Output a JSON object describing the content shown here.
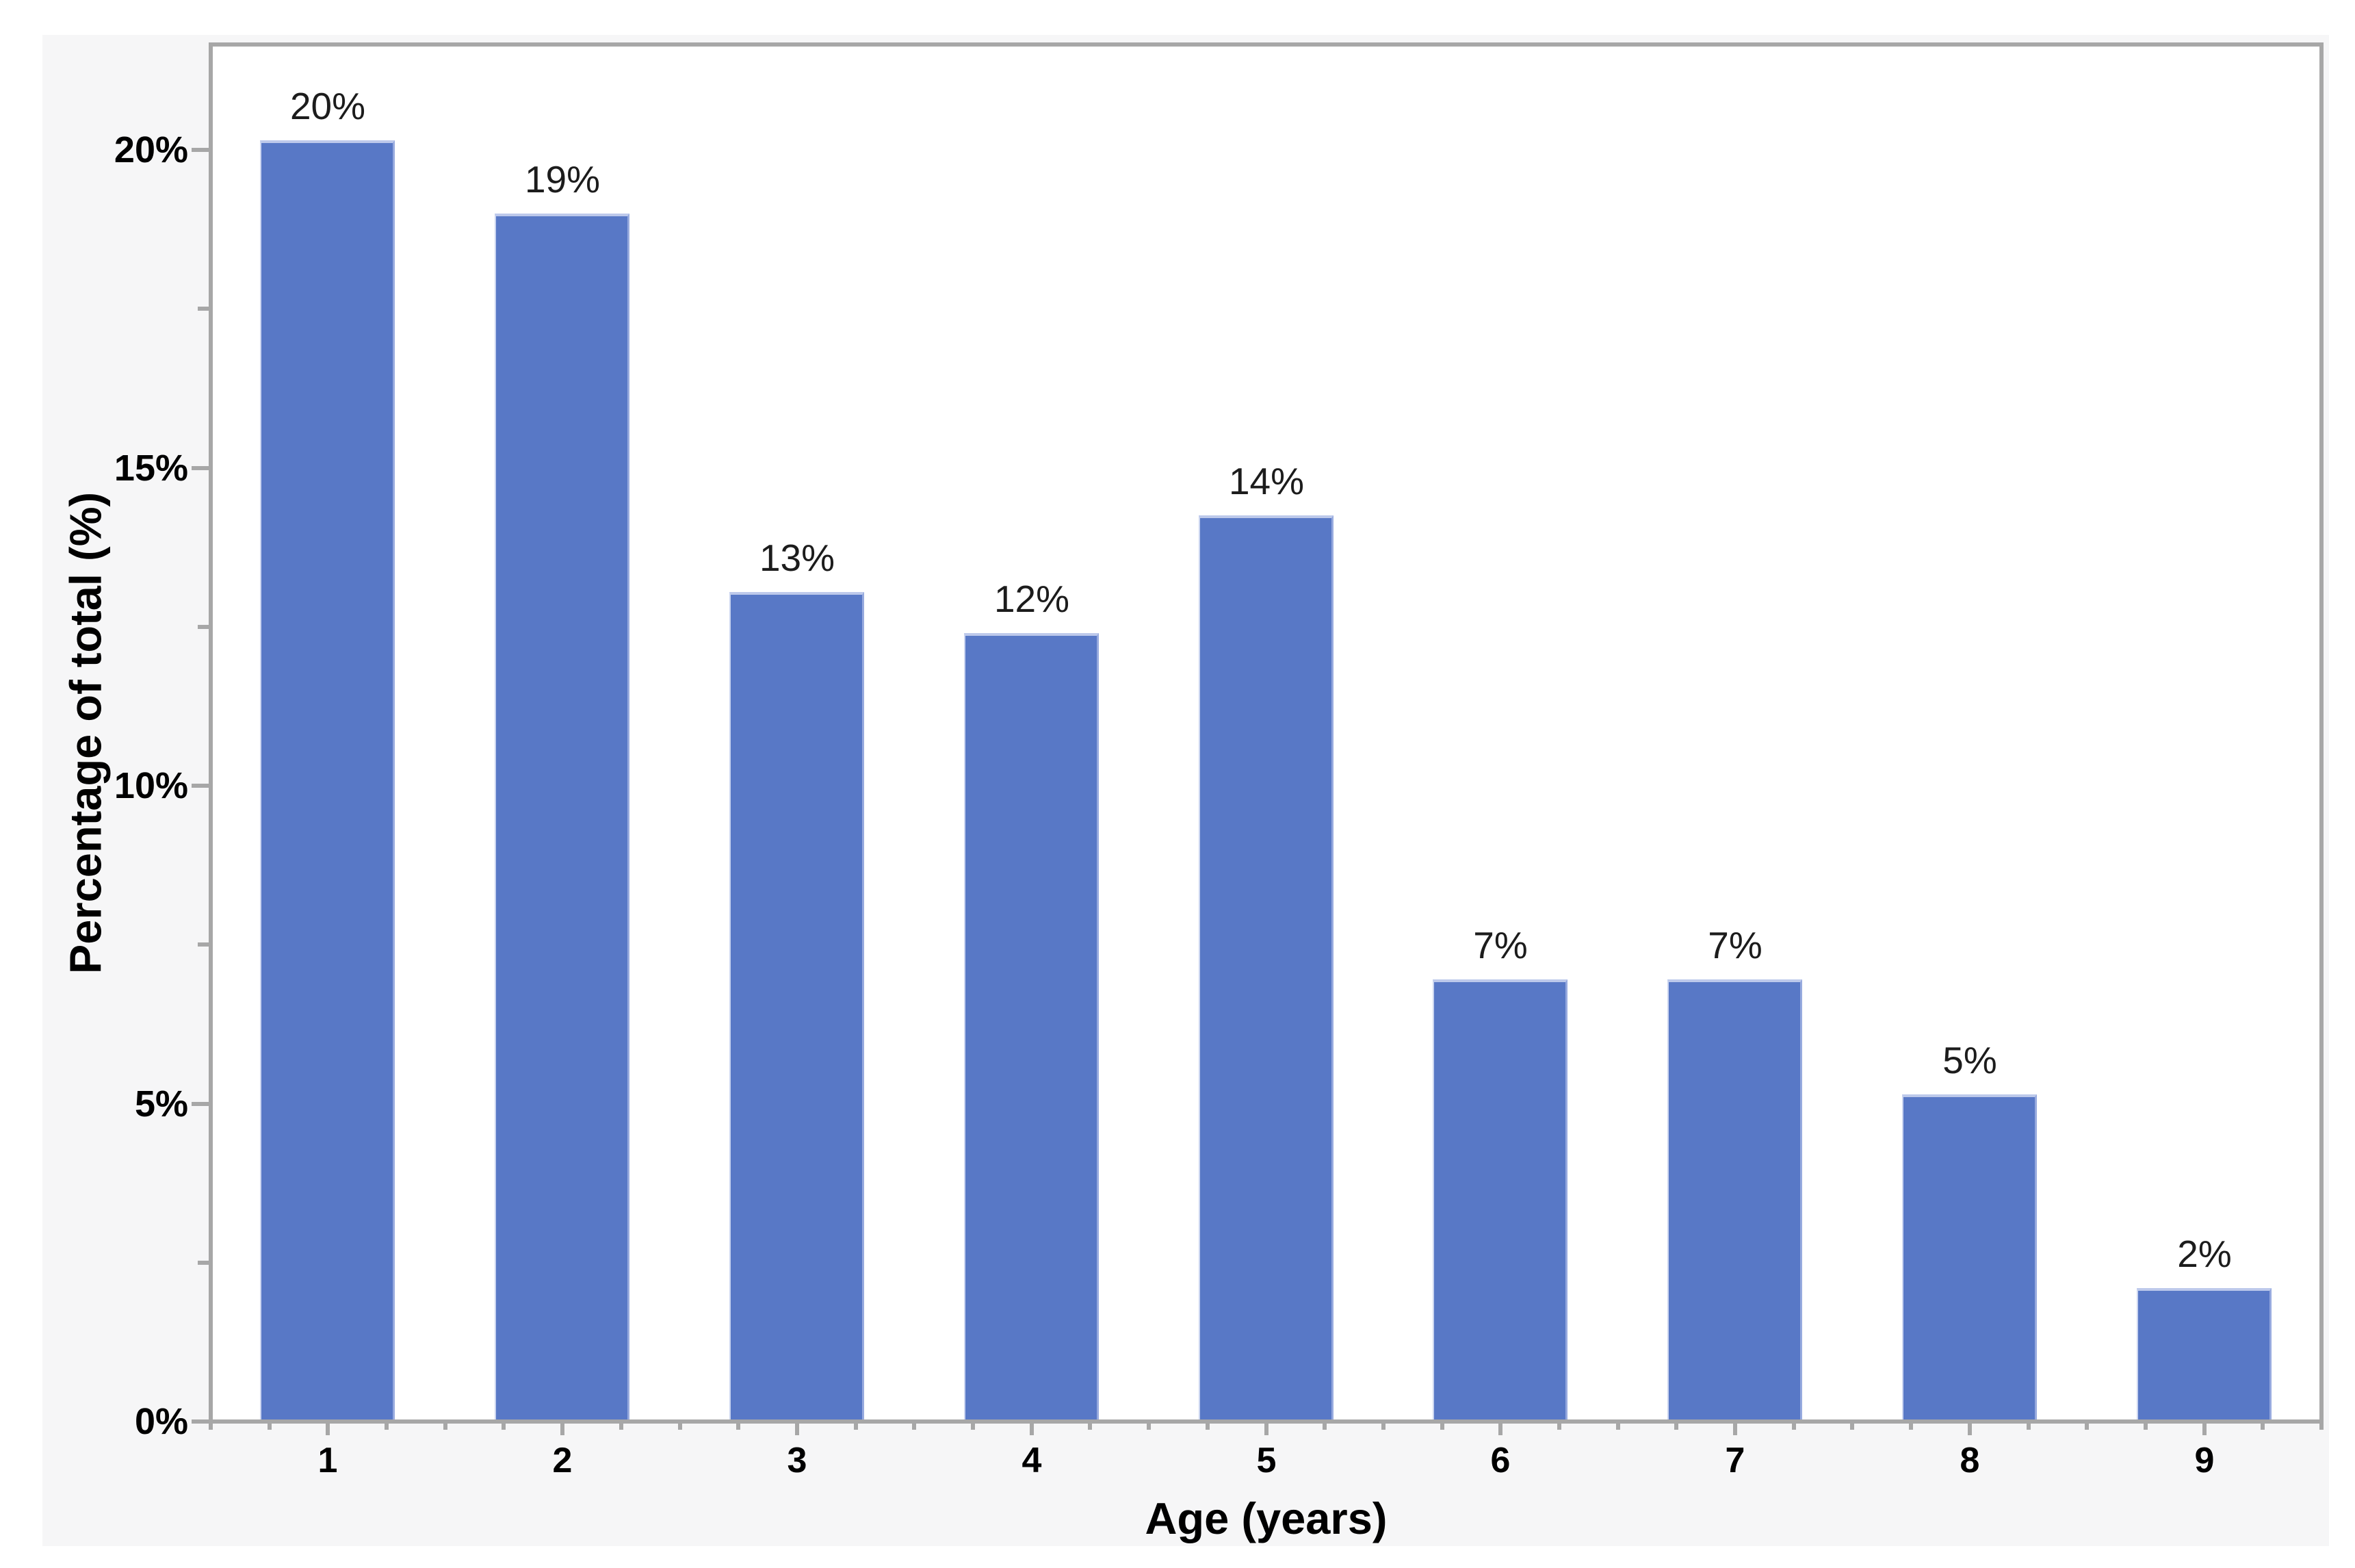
{
  "chart_data": {
    "type": "bar",
    "title": "",
    "xlabel": "Age (years)",
    "ylabel": "Percentage of total (%)",
    "categories": [
      "1",
      "2",
      "3",
      "4",
      "5",
      "6",
      "7",
      "8",
      "9"
    ],
    "values": [
      20,
      19,
      13,
      12,
      14,
      7,
      7,
      5,
      2
    ],
    "bar_labels": [
      "20%",
      "19%",
      "13%",
      "12%",
      "14%",
      "7%",
      "7%",
      "5%",
      "2%"
    ],
    "bar_heights_pct": [
      20.15,
      19.0,
      13.05,
      12.4,
      14.25,
      6.95,
      6.95,
      5.15,
      2.1
    ],
    "ylim": [
      0,
      21.6
    ],
    "y_major_ticks": {
      "values": [
        0,
        5,
        10,
        15,
        20
      ],
      "labels": [
        "0%",
        "5%",
        "10%",
        "15%",
        "20%"
      ]
    },
    "y_minor_ticks": [
      2.5,
      7.5,
      12.5,
      17.5
    ],
    "x_range": [
      0.5,
      9.5
    ],
    "x_minor_step": 0.25,
    "grid": false,
    "legend": "none",
    "colors": {
      "bar": "#5878C6",
      "bar_top_highlight": "#BDC9EB",
      "bar_left_edge": "#CBD5F0",
      "bar_right_edge": "#97AADE",
      "axis_line": "#A7A7A7",
      "canvas_bg": "#F6F6F7",
      "plot_bg": "#FFFFFF",
      "page_bg": "#FFFFFF",
      "tick_label": "#000000",
      "bar_label": "#1C1C1C"
    }
  }
}
